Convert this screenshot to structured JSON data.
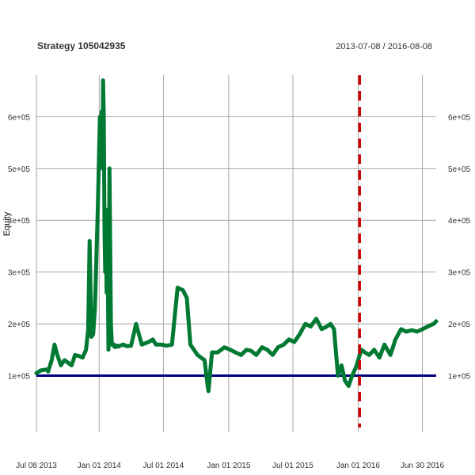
{
  "chart_data": {
    "type": "line",
    "title": "Strategy 105042935",
    "date_range": "2013-07-08 / 2016-08-08",
    "ylabel": "Equity",
    "xlabel": "",
    "grid": true,
    "legend": "none",
    "xlim": [
      "2013-07-08",
      "2016-08-08"
    ],
    "ylim": [
      0,
      680000
    ],
    "x_ticks": [
      {
        "date": "2013-07-08",
        "label": "Jul 08 2013"
      },
      {
        "date": "2014-01-01",
        "label": "Jan 01 2014"
      },
      {
        "date": "2014-07-01",
        "label": "Jul 01 2014"
      },
      {
        "date": "2015-01-01",
        "label": "Jan 01 2015"
      },
      {
        "date": "2015-07-01",
        "label": "Jul 01 2015"
      },
      {
        "date": "2016-01-01",
        "label": "Jan 01 2016"
      },
      {
        "date": "2016-06-30",
        "label": "Jun 30 2016"
      }
    ],
    "y_ticks": [
      {
        "value": 100000,
        "label": "1e+05"
      },
      {
        "value": 200000,
        "label": "2e+05"
      },
      {
        "value": 300000,
        "label": "3e+05"
      },
      {
        "value": 400000,
        "label": "4e+05"
      },
      {
        "value": 500000,
        "label": "5e+05"
      },
      {
        "value": 600000,
        "label": "6e+05"
      }
    ],
    "colors": {
      "equity": "#007a33",
      "baseline": "#000080",
      "marker": "#cc0000",
      "grid": "#a6a6a6",
      "text": "#333333"
    },
    "baseline_value": 100000,
    "marker_date": "2016-01-05",
    "series": [
      {
        "name": "Equity",
        "x": [
          "2013-07-08",
          "2013-07-20",
          "2013-08-05",
          "2013-08-10",
          "2013-08-20",
          "2013-08-28",
          "2013-09-05",
          "2013-09-15",
          "2013-09-25",
          "2013-10-05",
          "2013-10-15",
          "2013-10-25",
          "2013-11-05",
          "2013-11-15",
          "2013-11-25",
          "2013-12-01",
          "2013-12-05",
          "2013-12-10",
          "2013-12-15",
          "2013-12-20",
          "2013-12-28",
          "2014-01-03",
          "2014-01-06",
          "2014-01-08",
          "2014-01-10",
          "2014-01-12",
          "2014-01-14",
          "2014-01-16",
          "2014-01-18",
          "2014-01-20",
          "2014-01-22",
          "2014-01-24",
          "2014-01-27",
          "2014-01-30",
          "2014-02-03",
          "2014-02-06",
          "2014-02-09",
          "2014-02-12",
          "2014-02-15",
          "2014-02-18",
          "2014-02-21",
          "2014-02-24",
          "2014-03-01",
          "2014-03-10",
          "2014-03-20",
          "2014-04-01",
          "2014-04-15",
          "2014-05-01",
          "2014-05-20",
          "2014-06-01",
          "2014-06-10",
          "2014-06-15",
          "2014-06-25",
          "2014-07-10",
          "2014-07-25",
          "2014-08-10",
          "2014-08-25",
          "2014-09-05",
          "2014-09-15",
          "2014-09-25",
          "2014-10-05",
          "2014-10-15",
          "2014-10-25",
          "2014-11-01",
          "2014-11-05",
          "2014-11-15",
          "2014-12-01",
          "2014-12-20",
          "2015-01-05",
          "2015-01-20",
          "2015-02-05",
          "2015-02-20",
          "2015-03-05",
          "2015-03-20",
          "2015-04-05",
          "2015-04-20",
          "2015-05-05",
          "2015-05-20",
          "2015-06-05",
          "2015-06-20",
          "2015-07-05",
          "2015-07-20",
          "2015-08-05",
          "2015-08-20",
          "2015-09-05",
          "2015-09-20",
          "2015-10-05",
          "2015-10-15",
          "2015-10-25",
          "2015-11-05",
          "2015-11-15",
          "2015-11-25",
          "2015-12-05",
          "2015-12-15",
          "2015-12-25",
          "2016-01-01",
          "2016-01-10",
          "2016-01-20",
          "2016-02-01",
          "2016-02-15",
          "2016-03-01",
          "2016-03-15",
          "2016-04-01",
          "2016-04-15",
          "2016-05-01",
          "2016-05-15",
          "2016-06-01",
          "2016-06-15",
          "2016-07-01",
          "2016-07-15",
          "2016-08-01",
          "2016-08-08"
        ],
        "values": [
          105000,
          110000,
          112000,
          108000,
          130000,
          160000,
          140000,
          120000,
          130000,
          125000,
          120000,
          140000,
          138000,
          135000,
          150000,
          190000,
          360000,
          175000,
          180000,
          230000,
          420000,
          600000,
          520000,
          610000,
          500000,
          670000,
          600000,
          380000,
          300000,
          360000,
          260000,
          420000,
          150000,
          500000,
          200000,
          160000,
          158000,
          160000,
          155000,
          157000,
          158000,
          156000,
          158000,
          160000,
          157000,
          158000,
          200000,
          160000,
          165000,
          170000,
          160000,
          160000,
          160000,
          158000,
          160000,
          270000,
          265000,
          250000,
          160000,
          150000,
          140000,
          135000,
          130000,
          90000,
          70000,
          145000,
          145000,
          155000,
          150000,
          145000,
          140000,
          150000,
          148000,
          140000,
          155000,
          150000,
          140000,
          155000,
          160000,
          170000,
          165000,
          180000,
          200000,
          195000,
          210000,
          190000,
          195000,
          200000,
          190000,
          100000,
          120000,
          90000,
          80000,
          100000,
          115000,
          130000,
          150000,
          145000,
          140000,
          150000,
          135000,
          160000,
          140000,
          170000,
          190000,
          185000,
          188000,
          185000,
          190000,
          195000,
          200000,
          205000
        ]
      }
    ]
  }
}
